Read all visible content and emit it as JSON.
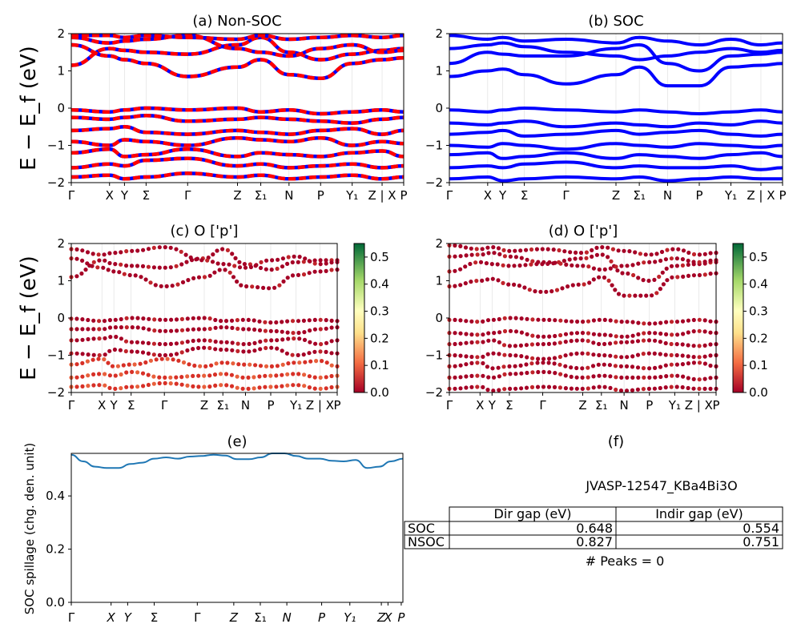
{
  "figure": {
    "ylabel_main": "E − E_f (eV)",
    "ylabel_e": "SOC spillage (chg. den. unit)"
  },
  "kpath": [
    "Γ",
    "X",
    "Y",
    "Σ",
    "Γ",
    "Z",
    "Σ₁",
    "N",
    "P",
    "Y₁",
    "Z | X",
    "P"
  ],
  "kpath_e": [
    "Γ",
    "X",
    "Y",
    "Σ",
    "Γ",
    "Z",
    "Σ₁",
    "N",
    "P",
    "Y₁",
    "Z",
    "X",
    "P"
  ],
  "kpos": [
    0.0,
    0.115,
    0.16,
    0.225,
    0.35,
    0.5,
    0.57,
    0.655,
    0.75,
    0.845,
    0.935,
    1.0
  ],
  "band_yticks": [
    "2",
    "1",
    "0",
    "−1",
    "−2"
  ],
  "colorbar_ticks": [
    "0.5",
    "0.4",
    "0.3",
    "0.2",
    "0.1",
    "0.0"
  ],
  "colors": {
    "nonsoc_primary": "#ff0000",
    "nonsoc_secondary": "#0000ff",
    "soc": "#0000ff",
    "spillage_line": "#1f77b4"
  },
  "chart_data": [
    {
      "panel": "a",
      "type": "line",
      "title": "(a) Non-SOC",
      "ylim": [
        -2,
        2
      ],
      "bands": [
        [
          1.15,
          1.6,
          1.55,
          1.5,
          1.45,
          1.7,
          1.9,
          1.5,
          1.3,
          1.45,
          1.55,
          1.6
        ],
        [
          1.9,
          1.75,
          1.8,
          1.85,
          1.95,
          1.6,
          1.5,
          1.4,
          1.6,
          1.7,
          1.5,
          1.55
        ],
        [
          1.7,
          1.4,
          1.3,
          1.2,
          0.85,
          1.1,
          1.3,
          0.9,
          0.8,
          1.2,
          1.3,
          1.35
        ],
        [
          1.95,
          1.95,
          1.9,
          1.95,
          1.9,
          1.85,
          1.95,
          1.85,
          1.9,
          1.95,
          1.9,
          1.95
        ],
        [
          -0.05,
          -0.1,
          -0.05,
          0.0,
          -0.05,
          0.0,
          -0.1,
          -0.05,
          -0.15,
          -0.1,
          -0.05,
          -0.1
        ],
        [
          -0.25,
          -0.3,
          -0.25,
          -0.2,
          -0.35,
          -0.3,
          -0.25,
          -0.3,
          -0.35,
          -0.4,
          -0.3,
          -0.25
        ],
        [
          -0.6,
          -0.55,
          -0.5,
          -0.65,
          -0.7,
          -0.6,
          -0.65,
          -0.7,
          -0.6,
          -0.55,
          -0.7,
          -0.6
        ],
        [
          -0.9,
          -1.0,
          -0.85,
          -0.9,
          -1.0,
          -0.8,
          -0.85,
          -0.9,
          -0.8,
          -1.0,
          -0.9,
          -0.95
        ],
        [
          -1.2,
          -1.1,
          -1.3,
          -1.25,
          -1.1,
          -1.3,
          -1.2,
          -1.25,
          -1.3,
          -1.2,
          -1.15,
          -1.3
        ],
        [
          -1.6,
          -1.5,
          -1.55,
          -1.4,
          -1.35,
          -1.55,
          -1.5,
          -1.6,
          -1.55,
          -1.5,
          -1.6,
          -1.55
        ],
        [
          -1.85,
          -1.8,
          -1.9,
          -1.85,
          -1.75,
          -1.85,
          -1.8,
          -1.9,
          -1.85,
          -1.8,
          -1.9,
          -1.85
        ]
      ]
    },
    {
      "panel": "b",
      "type": "line",
      "title": "(b) SOC",
      "ylim": [
        -2,
        2
      ],
      "bands": [
        [
          0.85,
          1.0,
          1.05,
          0.9,
          0.65,
          0.9,
          1.1,
          0.6,
          0.6,
          1.1,
          1.15,
          1.2
        ],
        [
          1.2,
          1.5,
          1.45,
          1.4,
          1.4,
          1.6,
          1.7,
          1.2,
          1.0,
          1.4,
          1.45,
          1.5
        ],
        [
          1.6,
          1.7,
          1.75,
          1.65,
          1.5,
          1.4,
          1.3,
          1.4,
          1.5,
          1.6,
          1.5,
          1.55
        ],
        [
          1.95,
          1.85,
          1.9,
          1.8,
          1.85,
          1.75,
          1.9,
          1.8,
          1.7,
          1.85,
          1.7,
          1.75
        ],
        [
          -0.05,
          -0.1,
          -0.05,
          0.0,
          -0.05,
          -0.1,
          -0.05,
          -0.1,
          -0.15,
          -0.1,
          -0.05,
          -0.1
        ],
        [
          -0.4,
          -0.45,
          -0.4,
          -0.35,
          -0.5,
          -0.4,
          -0.45,
          -0.5,
          -0.4,
          -0.45,
          -0.35,
          -0.4
        ],
        [
          -0.7,
          -0.65,
          -0.6,
          -0.75,
          -0.7,
          -0.6,
          -0.7,
          -0.65,
          -0.6,
          -0.7,
          -0.75,
          -0.7
        ],
        [
          -1.0,
          -1.05,
          -0.95,
          -1.0,
          -1.1,
          -0.95,
          -1.0,
          -1.05,
          -0.95,
          -1.0,
          -1.05,
          -1.0
        ],
        [
          -1.25,
          -1.2,
          -1.35,
          -1.3,
          -1.2,
          -1.35,
          -1.25,
          -1.3,
          -1.35,
          -1.25,
          -1.2,
          -1.3
        ],
        [
          -1.6,
          -1.55,
          -1.6,
          -1.5,
          -1.45,
          -1.6,
          -1.55,
          -1.6,
          -1.6,
          -1.55,
          -1.65,
          -1.6
        ],
        [
          -1.9,
          -1.85,
          -1.95,
          -1.9,
          -1.85,
          -1.9,
          -1.85,
          -1.95,
          -1.9,
          -1.85,
          -1.9,
          -1.9
        ]
      ]
    },
    {
      "panel": "c",
      "type": "scatter",
      "title": "(c)  O ['p']",
      "ylim": [
        -2,
        2
      ],
      "colorbar_range": [
        0.0,
        0.55
      ],
      "bands": [
        [
          1.1,
          1.55,
          1.45,
          1.4,
          1.35,
          1.6,
          1.85,
          1.45,
          1.3,
          1.5,
          1.55,
          1.55
        ],
        [
          1.85,
          1.7,
          1.75,
          1.8,
          1.9,
          1.55,
          1.45,
          1.35,
          1.55,
          1.65,
          1.45,
          1.5
        ],
        [
          1.6,
          1.35,
          1.25,
          1.15,
          0.85,
          1.1,
          1.3,
          0.85,
          0.8,
          1.15,
          1.25,
          1.3
        ],
        [
          -0.02,
          -0.08,
          -0.05,
          0.0,
          -0.05,
          0.0,
          -0.08,
          -0.05,
          -0.12,
          -0.08,
          -0.05,
          -0.08
        ],
        [
          -0.3,
          -0.3,
          -0.25,
          -0.25,
          -0.35,
          -0.3,
          -0.25,
          -0.3,
          -0.35,
          -0.4,
          -0.3,
          -0.25
        ],
        [
          -0.6,
          -0.55,
          -0.5,
          -0.65,
          -0.7,
          -0.6,
          -0.65,
          -0.7,
          -0.6,
          -0.55,
          -0.7,
          -0.6
        ],
        [
          -0.95,
          -1.0,
          -0.85,
          -0.9,
          -1.0,
          -0.8,
          -0.85,
          -0.9,
          -0.8,
          -1.0,
          -0.9,
          -0.95
        ],
        [
          -1.25,
          -1.1,
          -1.3,
          -1.25,
          -1.1,
          -1.3,
          -1.2,
          -1.25,
          -1.3,
          -1.2,
          -1.15,
          -1.3
        ],
        [
          -1.6,
          -1.5,
          -1.55,
          -1.45,
          -1.6,
          -1.55,
          -1.5,
          -1.6,
          -1.55,
          -1.5,
          -1.6,
          -1.55
        ],
        [
          -1.85,
          -1.8,
          -1.9,
          -1.85,
          -1.75,
          -1.85,
          -1.8,
          -1.9,
          -1.85,
          -1.8,
          -1.9,
          -1.85
        ]
      ]
    },
    {
      "panel": "d",
      "type": "scatter",
      "title": "(d) O ['p']",
      "ylim": [
        -2,
        2
      ],
      "colorbar_range": [
        0.0,
        0.55
      ],
      "bands": [
        [
          0.85,
          1.0,
          1.05,
          0.9,
          0.7,
          0.9,
          1.1,
          0.6,
          0.6,
          1.1,
          1.15,
          1.2
        ],
        [
          1.25,
          1.5,
          1.45,
          1.4,
          1.45,
          1.6,
          1.7,
          1.2,
          1.0,
          1.4,
          1.45,
          1.5
        ],
        [
          1.65,
          1.7,
          1.75,
          1.65,
          1.5,
          1.4,
          1.3,
          1.4,
          1.5,
          1.6,
          1.5,
          1.55
        ],
        [
          1.95,
          1.85,
          1.9,
          1.8,
          1.85,
          1.75,
          1.9,
          1.8,
          1.7,
          1.85,
          1.7,
          1.75
        ],
        [
          -0.05,
          -0.1,
          -0.05,
          0.0,
          -0.05,
          -0.1,
          -0.05,
          -0.1,
          -0.15,
          -0.1,
          -0.05,
          -0.1
        ],
        [
          -0.4,
          -0.45,
          -0.4,
          -0.35,
          -0.5,
          -0.4,
          -0.45,
          -0.5,
          -0.4,
          -0.45,
          -0.35,
          -0.4
        ],
        [
          -0.7,
          -0.65,
          -0.6,
          -0.75,
          -0.7,
          -0.6,
          -0.7,
          -0.65,
          -0.6,
          -0.7,
          -0.75,
          -0.7
        ],
        [
          -1.0,
          -1.05,
          -0.95,
          -1.0,
          -1.1,
          -0.95,
          -1.0,
          -1.05,
          -0.95,
          -1.0,
          -1.05,
          -1.0
        ],
        [
          -1.3,
          -1.2,
          -1.35,
          -1.3,
          -1.2,
          -1.35,
          -1.25,
          -1.3,
          -1.35,
          -1.25,
          -1.2,
          -1.3
        ],
        [
          -1.6,
          -1.55,
          -1.6,
          -1.5,
          -1.45,
          -1.6,
          -1.55,
          -1.6,
          -1.6,
          -1.55,
          -1.65,
          -1.6
        ],
        [
          -1.9,
          -1.85,
          -1.95,
          -1.9,
          -1.85,
          -1.9,
          -1.85,
          -1.95,
          -1.9,
          -1.85,
          -1.9,
          -1.9
        ]
      ]
    },
    {
      "panel": "e",
      "type": "line",
      "title": "(e)",
      "ylim": [
        0,
        0.56
      ],
      "yticks": [
        "0.4",
        "0.2",
        "0.0"
      ],
      "values": [
        0.555,
        0.53,
        0.51,
        0.505,
        0.505,
        0.52,
        0.525,
        0.54,
        0.545,
        0.54,
        0.548,
        0.55,
        0.555,
        0.552,
        0.538,
        0.538,
        0.545,
        0.56,
        0.56,
        0.55,
        0.54,
        0.54,
        0.532,
        0.53,
        0.535,
        0.505,
        0.51,
        0.53,
        0.54
      ]
    }
  ],
  "table_panel": {
    "title": "(f)",
    "material": "JVASP-12547_KBa4Bi3O",
    "headers": [
      "Dir gap (eV)",
      "Indir gap (eV)"
    ],
    "rows": [
      {
        "label": "SOC",
        "dir": "0.648",
        "indir": "0.554"
      },
      {
        "label": "NSOC",
        "dir": "0.827",
        "indir": "0.751"
      }
    ],
    "peaks": "# Peaks = 0"
  }
}
